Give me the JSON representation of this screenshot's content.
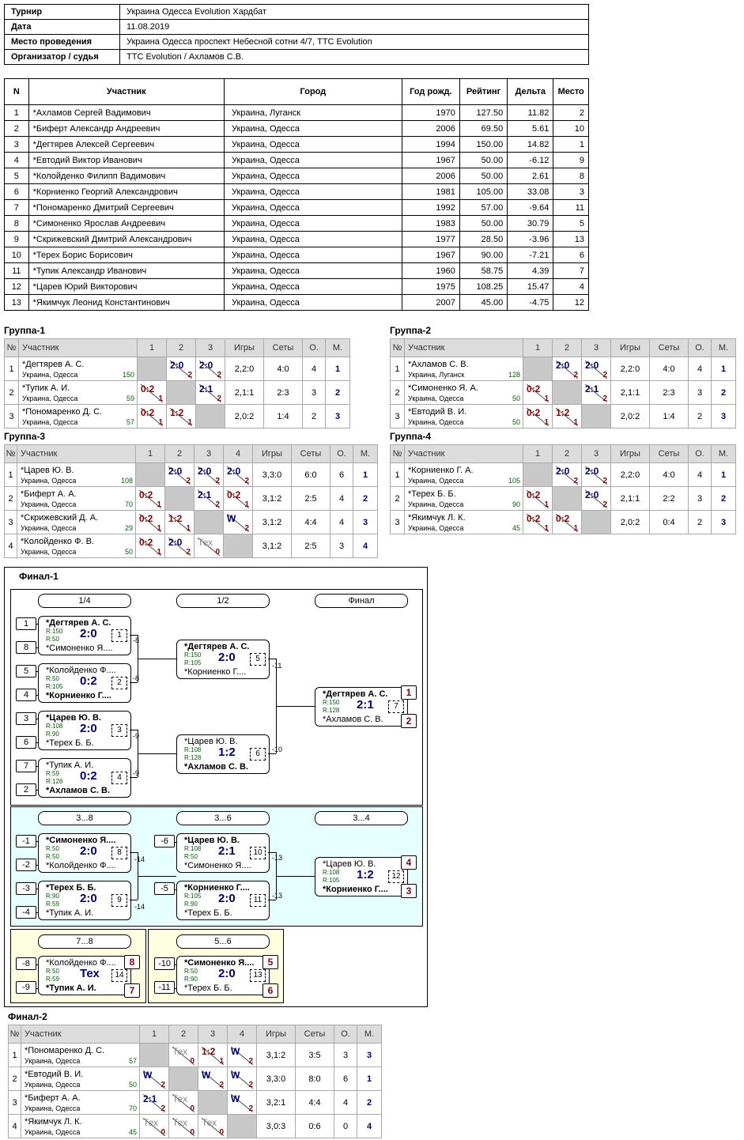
{
  "info": [
    {
      "k": "Турнир",
      "v": "Украина Одесса Evolution Хардбат"
    },
    {
      "k": "Дата",
      "v": "11.08.2019"
    },
    {
      "k": "Место проведения",
      "v": "Украина Одесса проспект Небесной сотни 4/7, TTC Evolution"
    },
    {
      "k": "Организатор / судья",
      "v": "TTC Evolution / Ахламов С.В."
    }
  ],
  "main_headers": [
    "N",
    "Участник",
    "Город",
    "Год рожд.",
    "Рейтинг",
    "Дельта",
    "Место"
  ],
  "players": [
    [
      "1",
      "*Ахламов Сергей Вадимович",
      "Украина, Луганск",
      "1970",
      "127.50",
      "11.82",
      "2"
    ],
    [
      "2",
      "*Биферт Александр Андреевич",
      "Украина, Одесса",
      "2006",
      "69.50",
      "5.61",
      "10"
    ],
    [
      "3",
      "*Дегтярев Алексей Сергеевич",
      "Украина, Одесса",
      "1994",
      "150.00",
      "14.82",
      "1"
    ],
    [
      "4",
      "*Евтодий Виктор Иванович",
      "Украина, Одесса",
      "1967",
      "50.00",
      "-6.12",
      "9"
    ],
    [
      "5",
      "*Колойденко Филипп Вадимович",
      "Украина, Одесса",
      "2006",
      "50.00",
      "2.61",
      "8"
    ],
    [
      "6",
      "*Корниенко Георгий Александрович",
      "Украина, Одесса",
      "1981",
      "105.00",
      "33.08",
      "3"
    ],
    [
      "7",
      "*Пономаренко Дмитрий Сергеевич",
      "Украина, Одесса",
      "1992",
      "57.00",
      "-9.64",
      "11"
    ],
    [
      "8",
      "*Симоненко Ярослав Андреевич",
      "Украина, Одесса",
      "1983",
      "50.00",
      "30.79",
      "5"
    ],
    [
      "9",
      "*Скрижевский Дмитрий Александрович",
      "Украина, Одесса",
      "1977",
      "28.50",
      "-3.96",
      "13"
    ],
    [
      "10",
      "*Терех Борис Борисович",
      "Украина, Одесса",
      "1967",
      "90.00",
      "-7.21",
      "6"
    ],
    [
      "11",
      "*Тупик Александр Иванович",
      "Украина, Одесса",
      "1960",
      "58.75",
      "4.39",
      "7"
    ],
    [
      "12",
      "*Царев Юрий Викторович",
      "Украина, Одесса",
      "1975",
      "108.25",
      "15.47",
      "4"
    ],
    [
      "13",
      "*Якимчук Леонид Константинович",
      "Украина, Одесса",
      "2007",
      "45.00",
      "-4.75",
      "12"
    ]
  ],
  "group_headers": {
    "no": "№",
    "player": "Участник",
    "games": "Игры",
    "sets": "Сеты",
    "points": "О.",
    "place": "М."
  },
  "groups": [
    {
      "title": "Группа-1",
      "cols": [
        "1",
        "2",
        "3"
      ],
      "rows": [
        {
          "n": "1",
          "name": "*Дегтярев А. С.",
          "city": "Украина, Одесса",
          "r": "150",
          "cells": [
            null,
            [
              "2:0",
              "2",
              "w"
            ],
            [
              "2:0",
              "2",
              "w"
            ]
          ],
          "games": "2,2:0",
          "sets": "4:0",
          "pts": "4",
          "place": "1"
        },
        {
          "n": "2",
          "name": "*Тупик А. И.",
          "city": "Украина, Одесса",
          "r": "59",
          "cells": [
            [
              "0:2",
              "1",
              "l"
            ],
            null,
            [
              "2:1",
              "2",
              "w"
            ]
          ],
          "games": "2,1:1",
          "sets": "2:3",
          "pts": "3",
          "place": "2"
        },
        {
          "n": "3",
          "name": "*Пономаренко Д. С.",
          "city": "Украина, Одесса",
          "r": "57",
          "cells": [
            [
              "0:2",
              "1",
              "l"
            ],
            [
              "1:2",
              "1",
              "l"
            ],
            null
          ],
          "games": "2,0:2",
          "sets": "1:4",
          "pts": "2",
          "place": "3"
        }
      ]
    },
    {
      "title": "Группа-2",
      "cols": [
        "1",
        "2",
        "3"
      ],
      "rows": [
        {
          "n": "1",
          "name": "*Ахламов С. В.",
          "city": "Украина, Луганск",
          "r": "128",
          "cells": [
            null,
            [
              "2:0",
              "2",
              "w"
            ],
            [
              "2:0",
              "2",
              "w"
            ]
          ],
          "games": "2,2:0",
          "sets": "4:0",
          "pts": "4",
          "place": "1"
        },
        {
          "n": "2",
          "name": "*Симоненко Я. А.",
          "city": "Украина, Одесса",
          "r": "50",
          "cells": [
            [
              "0:2",
              "1",
              "l"
            ],
            null,
            [
              "2:1",
              "2",
              "w"
            ]
          ],
          "games": "2,1:1",
          "sets": "2:3",
          "pts": "3",
          "place": "2"
        },
        {
          "n": "3",
          "name": "*Евтодий В. И.",
          "city": "Украина, Одесса",
          "r": "50",
          "cells": [
            [
              "0:2",
              "1",
              "l"
            ],
            [
              "1:2",
              "1",
              "l"
            ],
            null
          ],
          "games": "2,0:2",
          "sets": "1:4",
          "pts": "2",
          "place": "3"
        }
      ]
    },
    {
      "title": "Группа-3",
      "cols": [
        "1",
        "2",
        "3",
        "4"
      ],
      "rows": [
        {
          "n": "1",
          "name": "*Царев Ю. В.",
          "city": "Украина, Одесса",
          "r": "108",
          "cells": [
            null,
            [
              "2:0",
              "2",
              "w"
            ],
            [
              "2:0",
              "2",
              "w"
            ],
            [
              "2:0",
              "2",
              "w"
            ]
          ],
          "games": "3,3:0",
          "sets": "6:0",
          "pts": "6",
          "place": "1"
        },
        {
          "n": "2",
          "name": "*Биферт А. А.",
          "city": "Украина, Одесса",
          "r": "70",
          "cells": [
            [
              "0:2",
              "1",
              "l"
            ],
            null,
            [
              "2:1",
              "2",
              "w"
            ],
            [
              "0:2",
              "1",
              "l"
            ]
          ],
          "games": "3,1:2",
          "sets": "2:5",
          "pts": "4",
          "place": "2"
        },
        {
          "n": "3",
          "name": "*Скрижевский Д. А.",
          "city": "Украина, Одесса",
          "r": "29",
          "cells": [
            [
              "0:2",
              "1",
              "l"
            ],
            [
              "1:2",
              "1",
              "l"
            ],
            null,
            [
              "W",
              "2",
              "w"
            ]
          ],
          "games": "3,1:2",
          "sets": "4:4",
          "pts": "4",
          "place": "3"
        },
        {
          "n": "4",
          "name": "*Колойденко Ф. В.",
          "city": "Украина, Одесса",
          "r": "50",
          "cells": [
            [
              "0:2",
              "1",
              "l"
            ],
            [
              "2:0",
              "2",
              "w"
            ],
            [
              "Тех",
              "0",
              "t"
            ],
            null
          ],
          "games": "3,1:2",
          "sets": "2:5",
          "pts": "3",
          "place": "4"
        }
      ]
    },
    {
      "title": "Группа-4",
      "cols": [
        "1",
        "2",
        "3"
      ],
      "rows": [
        {
          "n": "1",
          "name": "*Корниенко Г. А.",
          "city": "Украина, Одесса",
          "r": "105",
          "cells": [
            null,
            [
              "2:0",
              "2",
              "w"
            ],
            [
              "2:0",
              "2",
              "w"
            ]
          ],
          "games": "2,2:0",
          "sets": "4:0",
          "pts": "4",
          "place": "1"
        },
        {
          "n": "2",
          "name": "*Терех Б. Б.",
          "city": "Украина, Одесса",
          "r": "90",
          "cells": [
            [
              "0:2",
              "1",
              "l"
            ],
            null,
            [
              "2:0",
              "2",
              "w"
            ]
          ],
          "games": "2,1:1",
          "sets": "2:2",
          "pts": "3",
          "place": "2"
        },
        {
          "n": "3",
          "name": "*Якимчук Л. К.",
          "city": "Украина, Одесса",
          "r": "45",
          "cells": [
            [
              "0:2",
              "1",
              "l"
            ],
            [
              "0:2",
              "1",
              "l"
            ],
            null
          ],
          "games": "2,0:2",
          "sets": "0:4",
          "pts": "2",
          "place": "3"
        }
      ]
    },
    {
      "title": "Финал-2",
      "cols": [
        "1",
        "2",
        "3",
        "4"
      ],
      "rows": [
        {
          "n": "1",
          "name": "*Пономаренко Д. С.",
          "city": "Украина, Одесса",
          "r": "57",
          "cells": [
            null,
            [
              "Тех",
              "0",
              "t"
            ],
            [
              "1:2",
              "1",
              "l"
            ],
            [
              "W",
              "2",
              "w"
            ]
          ],
          "games": "3,1:2",
          "sets": "3:5",
          "pts": "3",
          "place": "3"
        },
        {
          "n": "2",
          "name": "*Евтодий В. И.",
          "city": "Украина, Одесса",
          "r": "50",
          "cells": [
            [
              "W",
              "2",
              "w"
            ],
            null,
            [
              "W",
              "2",
              "w"
            ],
            [
              "W",
              "2",
              "w"
            ]
          ],
          "games": "3,3:0",
          "sets": "8:0",
          "pts": "6",
          "place": "1"
        },
        {
          "n": "3",
          "name": "*Биферт А. А.",
          "city": "Украина, Одесса",
          "r": "70",
          "cells": [
            [
              "2:1",
              "2",
              "w"
            ],
            [
              "Тех",
              "0",
              "t"
            ],
            null,
            [
              "W",
              "2",
              "w"
            ]
          ],
          "games": "3,2:1",
          "sets": "4:4",
          "pts": "4",
          "place": "2"
        },
        {
          "n": "4",
          "name": "*Якимчук Л. К.",
          "city": "Украина, Одесса",
          "r": "45",
          "cells": [
            [
              "Тех",
              "0",
              "t"
            ],
            [
              "Тех",
              "0",
              "t"
            ],
            [
              "Тех",
              "0",
              "t"
            ],
            null
          ],
          "games": "3,0:3",
          "sets": "0:6",
          "pts": "0",
          "place": "4"
        }
      ]
    }
  ],
  "final1": {
    "title": "Финал-1",
    "rounds": [
      "1/4",
      "1/2",
      "Финал",
      "3...8",
      "3...6",
      "3...4",
      "7...8",
      "5...6"
    ],
    "seeds": [
      "1",
      "8",
      "5",
      "4",
      "3",
      "6",
      "7",
      "2",
      "-1",
      "-2",
      "-3",
      "-4",
      "-6",
      "-5",
      "-8",
      "-9",
      "-10",
      "-11"
    ],
    "arrow_labels": [
      "-8",
      "-8",
      "-9",
      "-9",
      "-11",
      "-10",
      "-14",
      "-14",
      "-13",
      "-13"
    ],
    "matches": [
      {
        "p1": "*Дегтярев А. С.",
        "r1": "R:150",
        "p2": "*Симоненко Я....",
        "r2": "R:50",
        "s": "2:0",
        "g": "1",
        "w": 1
      },
      {
        "p1": "*Колойденко Ф....",
        "r1": "R:50",
        "p2": "*Корниенко Г....",
        "r2": "R:105",
        "s": "0:2",
        "g": "2",
        "w": 2
      },
      {
        "p1": "*Царев Ю. В.",
        "r1": "R:108",
        "p2": "*Терех Б. Б.",
        "r2": "R:90",
        "s": "2:0",
        "g": "3",
        "w": 1
      },
      {
        "p1": "*Тупик А. И.",
        "r1": "R:59",
        "p2": "*Ахламов С. В.",
        "r2": "R:128",
        "s": "0:2",
        "g": "4",
        "w": 2
      },
      {
        "p1": "*Дегтярев А. С.",
        "r1": "R:150",
        "p2": "*Корниенко Г....",
        "r2": "R:105",
        "s": "2:0",
        "g": "5",
        "w": 1
      },
      {
        "p1": "*Царев Ю. В.",
        "r1": "R:108",
        "p2": "*Ахламов С. В.",
        "r2": "R:128",
        "s": "1:2",
        "g": "6",
        "w": 2
      },
      {
        "p1": "*Дегтярев А. С.",
        "r1": "R:150",
        "p2": "*Ахламов С. В.",
        "r2": "R:128",
        "s": "2:1",
        "g": "7",
        "w": 1
      },
      {
        "p1": "*Симоненко Я....",
        "r1": "R:50",
        "p2": "*Колойденко Ф....",
        "r2": "R:50",
        "s": "2:0",
        "g": "8",
        "w": 1
      },
      {
        "p1": "*Терех Б. Б.",
        "r1": "R:90",
        "p2": "*Тупик А. И.",
        "r2": "R:59",
        "s": "2:0",
        "g": "9",
        "w": 1
      },
      {
        "p1": "*Царев Ю. В.",
        "r1": "R:108",
        "p2": "*Симоненко Я....",
        "r2": "R:50",
        "s": "2:1",
        "g": "10",
        "w": 1
      },
      {
        "p1": "*Корниенко Г....",
        "r1": "R:105",
        "p2": "*Терех Б. Б.",
        "r2": "R:90",
        "s": "2:0",
        "g": "11",
        "w": 1
      },
      {
        "p1": "*Царев Ю. В.",
        "r1": "R:108",
        "p2": "*Корниенко Г....",
        "r2": "R:105",
        "s": "1:2",
        "g": "12",
        "w": 2
      },
      {
        "p1": "*Симоненко Я....",
        "r1": "R:50",
        "p2": "*Терех Б. Б.",
        "r2": "R:90",
        "s": "2:0",
        "g": "13",
        "w": 1
      },
      {
        "p1": "*Колойденко Ф....",
        "r1": "R:50",
        "p2": "*Тупик А. И.",
        "r2": "R:59",
        "s": "Тех",
        "g": "14",
        "w": 2
      }
    ],
    "places": [
      "1",
      "2",
      "4",
      "3",
      "8",
      "7",
      "5",
      "6"
    ]
  }
}
